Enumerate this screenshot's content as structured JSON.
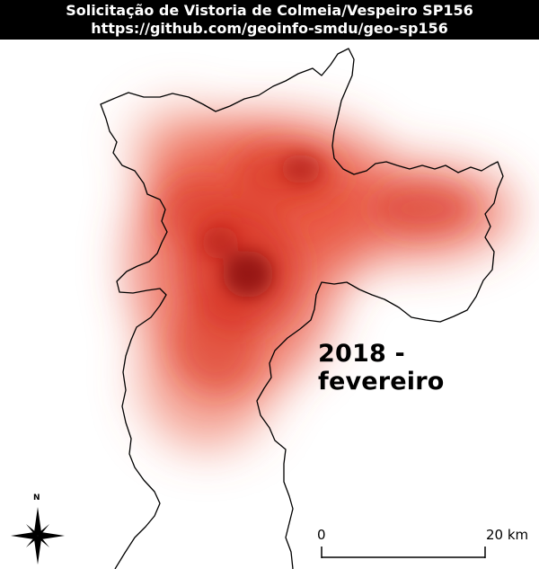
{
  "header": {
    "title": "Solicitação de Vistoria de Colmeia/Vespeiro SP156",
    "url": "https://github.com/geoinfo-smdu/geo-sp156"
  },
  "map": {
    "period_label": "2018 - fevereiro",
    "heatmap_color": "#d7301f",
    "heatmap_core_color": "#8b0d0d",
    "boundary_color": "#000000"
  },
  "scale_bar": {
    "start_label": "0",
    "end_label": "20 km"
  },
  "north_arrow": {
    "label": "N",
    "icon": "compass-rose-icon"
  }
}
